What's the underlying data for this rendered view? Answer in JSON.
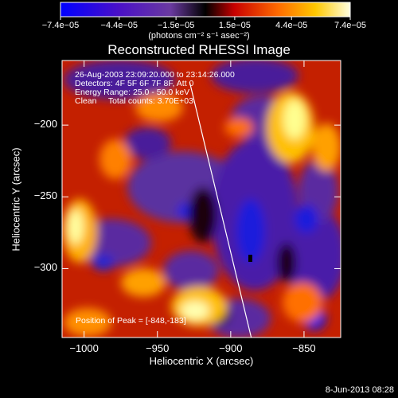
{
  "chart_data": {
    "type": "heatmap",
    "title": "Reconstructed RHESSI Image",
    "xlabel": "Heliocentric X (arcsec)",
    "ylabel": "Heliocentric Y (arcsec)",
    "xlim": [
      -1015,
      -825
    ],
    "ylim": [
      -348,
      -155
    ],
    "x_ticks": [
      -1000,
      -950,
      -900,
      -850
    ],
    "y_ticks": [
      -200,
      -250,
      -300
    ],
    "x_tick_labels": [
      "−1000",
      "−950",
      "−900",
      "−850"
    ],
    "y_tick_labels": [
      "−200",
      "−250",
      "−300"
    ],
    "colorbar": {
      "label": "(photons cm⁻² s⁻¹ asec⁻²)",
      "range": [
        -7.4e-05,
        7.4e-05
      ],
      "ticks": [
        -7.4e-05,
        -4.4e-05,
        -1.5e-05,
        1.5e-05,
        4.4e-05,
        7.4e-05
      ],
      "tick_labels": [
        "−7.4e−05",
        "−4.4e−05",
        "−1.5e−05",
        "1.5e−05",
        "4.4e−05",
        "7.4e−05"
      ],
      "colormap": [
        "#0000ff",
        "#4000c0",
        "#5a2c9a",
        "#000000",
        "#cc0000",
        "#ff6600",
        "#ffcc00",
        "#ffffdd"
      ]
    },
    "annotations": {
      "time_range": "26-Aug-2003 23:09:20.000 to 23:14:26.000",
      "detectors": "Detectors: 4F 5F 6F 7F 8F, Att 0",
      "energy_range": "Energy Range: 25.0 - 50.0 keV",
      "algorithm_counts": "Clean     Total counts: 3.70E+03",
      "peak_position": "Position of Peak = [-848,-183]"
    },
    "limb_line": {
      "x": [
        -928,
        -886
      ],
      "y": [
        -170,
        -348
      ]
    }
  },
  "footer": {
    "timestamp": "8-Jun-2013 08:28"
  }
}
